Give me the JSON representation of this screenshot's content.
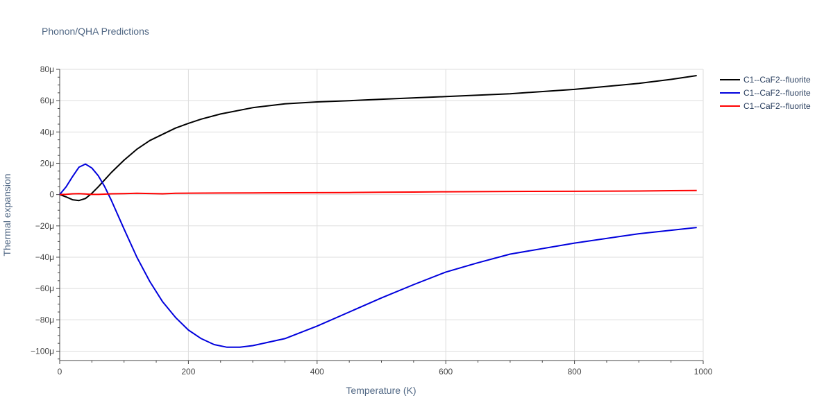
{
  "chart_data": {
    "type": "line",
    "title": "Phonon/QHA Predictions",
    "xlabel": "Temperature (K)",
    "ylabel": "Thermal expansion",
    "xlim": [
      0,
      1000
    ],
    "ylim": [
      -106,
      80
    ],
    "x_ticks": [
      0,
      200,
      400,
      600,
      800,
      1000
    ],
    "x_tick_labels": [
      "0",
      "200",
      "400",
      "600",
      "800",
      "1000"
    ],
    "y_ticks": [
      80,
      60,
      40,
      20,
      0,
      -20,
      -40,
      -60,
      -80,
      -100
    ],
    "y_tick_labels": [
      "80μ",
      "60μ",
      "40μ",
      "20μ",
      "0",
      "−20μ",
      "−40μ",
      "−60μ",
      "−80μ",
      "−100μ"
    ],
    "grid": true,
    "legend_position": "top-right",
    "series": [
      {
        "name": "C1--CaF2--fluorite",
        "color": "#000000",
        "x": [
          0,
          10,
          20,
          30,
          40,
          50,
          60,
          70,
          80,
          100,
          120,
          140,
          160,
          180,
          200,
          220,
          250,
          300,
          350,
          400,
          450,
          500,
          600,
          700,
          800,
          900,
          950,
          980,
          990
        ],
        "y": [
          0,
          -1.5,
          -3.3,
          -3.8,
          -2.5,
          0.8,
          5,
          9.5,
          14,
          22,
          29,
          34.5,
          38.5,
          42.5,
          45.5,
          48.2,
          51.5,
          55.5,
          58,
          59.2,
          60,
          60.9,
          62.6,
          64.4,
          67.2,
          71,
          73.6,
          75.4,
          76
        ]
      },
      {
        "name": "C1--CaF2--fluorite",
        "color": "#0000dd",
        "x": [
          0,
          10,
          20,
          30,
          40,
          50,
          60,
          70,
          80,
          100,
          120,
          140,
          160,
          180,
          200,
          220,
          240,
          260,
          280,
          300,
          350,
          400,
          450,
          500,
          550,
          600,
          650,
          700,
          800,
          900,
          990
        ],
        "y": [
          0,
          5,
          11.5,
          17.5,
          19.5,
          17,
          12,
          5,
          -3.5,
          -22,
          -40,
          -55.5,
          -68.5,
          -78.5,
          -86.5,
          -92,
          -95.8,
          -97.5,
          -97.5,
          -96.5,
          -92,
          -84,
          -75,
          -66,
          -57.5,
          -49.5,
          -43.5,
          -38,
          -31,
          -25,
          -21
        ]
      },
      {
        "name": "C1--CaF2--fluorite",
        "color": "#ff0000",
        "x": [
          0,
          10,
          20,
          30,
          40,
          50,
          60,
          70,
          80,
          100,
          120,
          140,
          160,
          180,
          200,
          250,
          300,
          400,
          450,
          500,
          550,
          600,
          700,
          800,
          900,
          950,
          990
        ],
        "y": [
          0,
          0.2,
          0.5,
          0.6,
          0.4,
          0.1,
          0.1,
          0.3,
          0.5,
          0.6,
          0.8,
          0.7,
          0.5,
          0.8,
          0.9,
          1.0,
          1.1,
          1.2,
          1.3,
          1.5,
          1.6,
          1.8,
          2.0,
          2.1,
          2.3,
          2.5,
          2.6
        ]
      }
    ]
  }
}
